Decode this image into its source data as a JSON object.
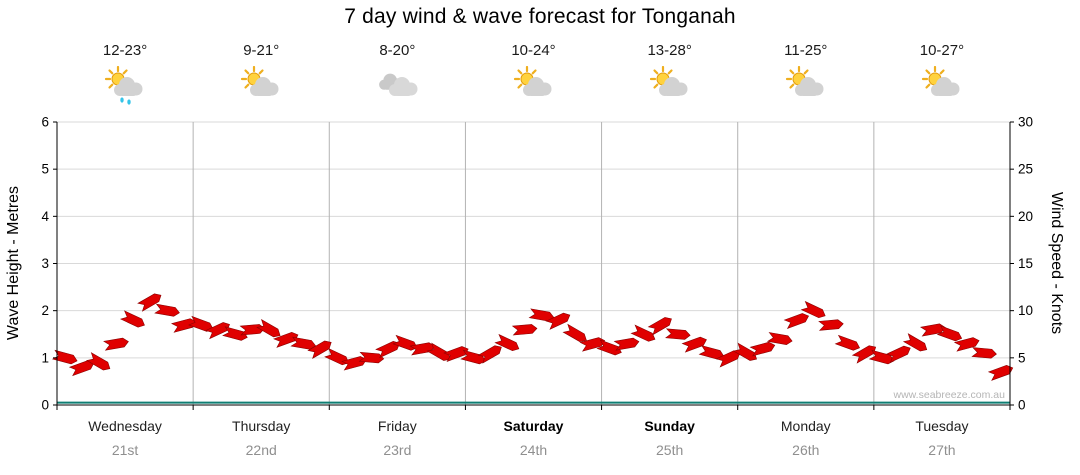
{
  "title": "7 day wind & wave forecast for Tonganah",
  "watermark": "www.seabreeze.com.au",
  "left_axis": {
    "label": "Wave Height - Metres",
    "min": 0,
    "max": 6,
    "step": 1
  },
  "right_axis": {
    "label": "Wind Speed - Knots",
    "min": 0,
    "max": 30,
    "step": 5
  },
  "days": [
    {
      "name": "Wednesday",
      "date": "21st",
      "temp": "12-23°",
      "icon": "partly-cloudy-rain",
      "weekend": false
    },
    {
      "name": "Thursday",
      "date": "22nd",
      "temp": "9-21°",
      "icon": "partly-cloudy",
      "weekend": false
    },
    {
      "name": "Friday",
      "date": "23rd",
      "temp": "8-20°",
      "icon": "cloudy",
      "weekend": false
    },
    {
      "name": "Saturday",
      "date": "24th",
      "temp": "10-24°",
      "icon": "partly-cloudy",
      "weekend": true
    },
    {
      "name": "Sunday",
      "date": "25th",
      "temp": "13-28°",
      "icon": "partly-cloudy",
      "weekend": true
    },
    {
      "name": "Monday",
      "date": "26th",
      "temp": "11-25°",
      "icon": "partly-cloudy",
      "weekend": false
    },
    {
      "name": "Tuesday",
      "date": "27th",
      "temp": "10-27°",
      "icon": "partly-cloudy",
      "weekend": false
    }
  ],
  "chart_data": {
    "type": "wind-barb",
    "title": "7 day wind & wave forecast for Tonganah",
    "categories": [
      "Wednesday 21st",
      "Thursday 22nd",
      "Friday 23rd",
      "Saturday 24th",
      "Sunday 25th",
      "Monday 26th",
      "Tuesday 27th"
    ],
    "points_per_day": 8,
    "x_unit": "3-hourly steps across 7 days",
    "ylabel_left": "Wave Height - Metres",
    "ylabel_right": "Wind Speed - Knots",
    "ylim_left": [
      0,
      6
    ],
    "ylim_right": [
      0,
      30
    ],
    "wind_knots": [
      5,
      4,
      4.5,
      6.5,
      9,
      11,
      10,
      8.5,
      8.5,
      8,
      7.5,
      8,
      8,
      7,
      6.5,
      6,
      5,
      4.5,
      5,
      6,
      6.5,
      6,
      5.5,
      5.5,
      5,
      5.5,
      6.5,
      8,
      9.5,
      9,
      7.5,
      6.5,
      6,
      6.5,
      7.5,
      8.5,
      7.5,
      6.5,
      5.5,
      5,
      5.5,
      6,
      7,
      9,
      10,
      8.5,
      6.5,
      5.5,
      5,
      5.5,
      6.5,
      8,
      7.5,
      6.5,
      5.5,
      3.5
    ],
    "barb_angles_deg": [
      15,
      -20,
      30,
      -10,
      25,
      -30,
      10,
      -15,
      20,
      -25,
      15,
      -5,
      30,
      -20,
      10,
      -30,
      25,
      -15,
      5,
      -25,
      20,
      -10,
      30,
      -20,
      15,
      -30,
      25,
      -5,
      10,
      -25,
      30,
      -15,
      20,
      -10,
      25,
      -30,
      5,
      -20,
      15,
      -25,
      30,
      -15,
      10,
      -20,
      25,
      -5,
      20,
      -30,
      15,
      -25,
      30,
      -10,
      20,
      -15,
      5,
      -20
    ],
    "wave_metres_baseline": 0.05,
    "grid": true,
    "colors": {
      "barb": "#e00000",
      "barb_stroke": "#8b0000",
      "wave_line": "#0f7f74",
      "grid": "#d9d9d9",
      "day_grid": "#b3b3b3",
      "axis": "#000000"
    }
  }
}
